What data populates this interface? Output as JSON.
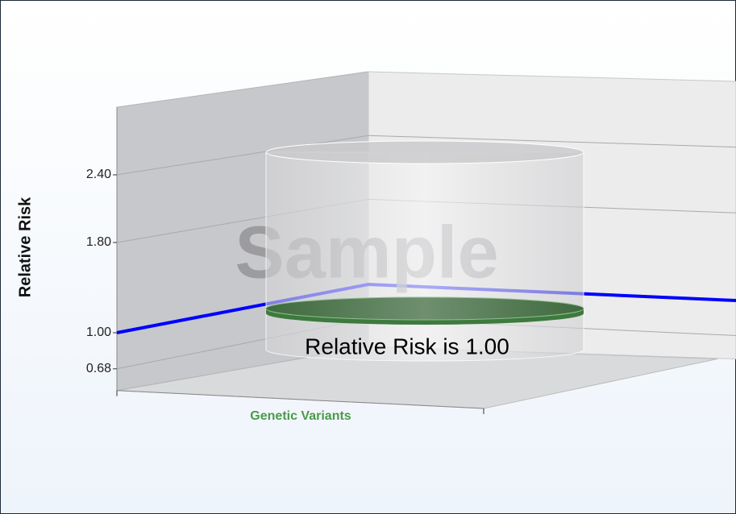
{
  "chart_data": {
    "type": "cylinder",
    "ylabel": "Relative Risk",
    "categories": [
      "Genetic Variants"
    ],
    "values": [
      1
    ],
    "color": "#4e7a4e",
    "ylim": [
      0.68,
      3
    ],
    "yticks": [
      0.68,
      {
        "value": 1,
        "label": "1.00"
      },
      {
        "value": 1.8,
        "label": "1.80"
      },
      {
        "value": 2.4,
        "label": "2.40"
      }
    ],
    "grid": true,
    "reference_line": {
      "value": 1,
      "color": "#0000ff"
    },
    "annotation": "Relative Risk is 1.00",
    "watermark": "Sample"
  }
}
